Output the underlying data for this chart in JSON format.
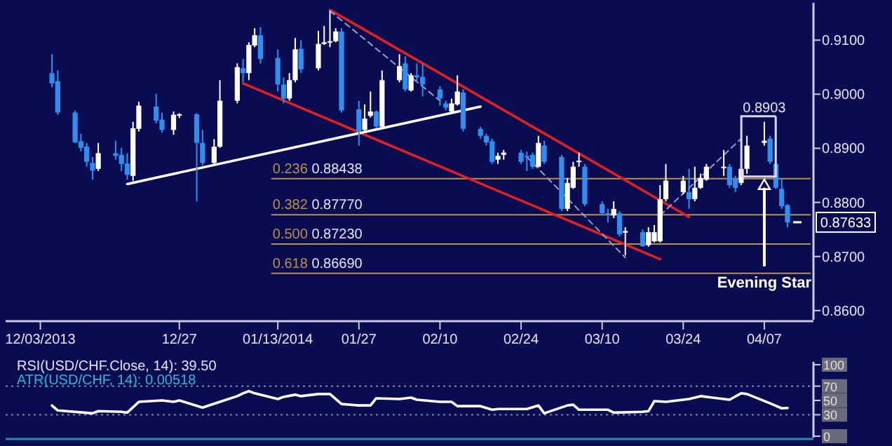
{
  "chart_data": [
    {
      "type": "candlestick",
      "xlim": [
        "2013-11-27",
        "2014-04-15"
      ],
      "ylim": [
        0.8583,
        0.9169
      ],
      "xticks": [
        {
          "value": "2013-12-03",
          "label": "12/03/2013"
        },
        {
          "value": "2013-12-27",
          "label": "12/27"
        },
        {
          "value": "2014-01-13",
          "label": "01/13/2014"
        },
        {
          "value": "2014-01-27",
          "label": "01/27"
        },
        {
          "value": "2014-02-10",
          "label": "02/10"
        },
        {
          "value": "2014-02-24",
          "label": "02/24"
        },
        {
          "value": "2014-03-10",
          "label": "03/10"
        },
        {
          "value": "2014-03-24",
          "label": "03/24"
        },
        {
          "value": "2014-04-07",
          "label": "04/07"
        }
      ],
      "yticks": [
        {
          "value": 0.86,
          "label": "0.8600"
        },
        {
          "value": 0.87,
          "label": "0.8700"
        },
        {
          "value": 0.88,
          "label": "0.8800"
        },
        {
          "value": 0.89,
          "label": "0.8900"
        },
        {
          "value": 0.9,
          "label": "0.9000"
        },
        {
          "value": 0.91,
          "label": "0.9100"
        }
      ],
      "x": [
        "2013-12-05",
        "2013-12-06",
        "2013-12-09",
        "2013-12-10",
        "2013-12-11",
        "2013-12-12",
        "2013-12-13",
        "2013-12-16",
        "2013-12-17",
        "2013-12-18",
        "2013-12-19",
        "2013-12-20",
        "2013-12-23",
        "2013-12-24",
        "2013-12-26",
        "2013-12-27",
        "2013-12-30",
        "2013-12-31",
        "2014-01-02",
        "2014-01-03",
        "2014-01-06",
        "2014-01-07",
        "2014-01-08",
        "2014-01-09",
        "2014-01-10",
        "2014-01-13",
        "2014-01-14",
        "2014-01-15",
        "2014-01-16",
        "2014-01-17",
        "2014-01-20",
        "2014-01-21",
        "2014-01-22",
        "2014-01-23",
        "2014-01-24",
        "2014-01-27",
        "2014-01-28",
        "2014-01-29",
        "2014-01-30",
        "2014-01-31",
        "2014-02-03",
        "2014-02-04",
        "2014-02-05",
        "2014-02-06",
        "2014-02-07",
        "2014-02-10",
        "2014-02-11",
        "2014-02-12",
        "2014-02-13",
        "2014-02-14",
        "2014-02-17",
        "2014-02-18",
        "2014-02-19",
        "2014-02-20",
        "2014-02-21",
        "2014-02-24",
        "2014-02-25",
        "2014-02-26",
        "2014-02-27",
        "2014-02-28",
        "2014-03-03",
        "2014-03-04",
        "2014-03-05",
        "2014-03-06",
        "2014-03-07",
        "2014-03-10",
        "2014-03-11",
        "2014-03-12",
        "2014-03-13",
        "2014-03-14",
        "2014-03-17",
        "2014-03-18",
        "2014-03-19",
        "2014-03-20",
        "2014-03-21",
        "2014-03-24",
        "2014-03-25",
        "2014-03-26",
        "2014-03-27",
        "2014-03-28",
        "2014-03-31",
        "2014-04-01",
        "2014-04-02",
        "2014-04-03",
        "2014-04-04",
        "2014-04-07",
        "2014-04-08",
        "2014-04-09",
        "2014-04-10",
        "2014-04-11"
      ],
      "ohlc": [
        [
          0.9039,
          0.9074,
          0.9013,
          0.902
        ],
        [
          0.9024,
          0.9044,
          0.8962,
          0.8966
        ],
        [
          0.8966,
          0.897,
          0.891,
          0.8911
        ],
        [
          0.8913,
          0.8927,
          0.8894,
          0.8901
        ],
        [
          0.8903,
          0.891,
          0.8866,
          0.8875
        ],
        [
          0.8873,
          0.8884,
          0.8842,
          0.8859
        ],
        [
          0.8862,
          0.891,
          0.8858,
          0.8891
        ],
        [
          0.8891,
          0.8914,
          0.8879,
          0.8886
        ],
        [
          0.8888,
          0.8901,
          0.8858,
          0.8871
        ],
        [
          0.8872,
          0.8891,
          0.8842,
          0.8851
        ],
        [
          0.8849,
          0.8949,
          0.884,
          0.8937
        ],
        [
          0.8936,
          0.8986,
          0.8931,
          0.8979
        ],
        [
          0.8977,
          0.9001,
          0.8946,
          0.8951
        ],
        [
          0.8953,
          0.8966,
          0.8929,
          0.8934
        ],
        [
          0.8934,
          0.8968,
          0.8925,
          0.8962
        ],
        [
          0.8962,
          0.8965,
          0.8956,
          0.8963
        ],
        [
          0.8963,
          0.8965,
          0.8802,
          0.891
        ],
        [
          0.891,
          0.8934,
          0.8868,
          0.8873
        ],
        [
          0.8873,
          0.8917,
          0.8871,
          0.8903
        ],
        [
          0.8903,
          0.9026,
          0.8901,
          0.8988
        ],
        [
          0.8988,
          0.9057,
          0.8983,
          0.905
        ],
        [
          0.9048,
          0.9065,
          0.9022,
          0.9039
        ],
        [
          0.9039,
          0.9096,
          0.9026,
          0.9091
        ],
        [
          0.909,
          0.9122,
          0.9087,
          0.9109
        ],
        [
          0.9109,
          0.9124,
          0.9057,
          0.9065
        ],
        [
          0.9067,
          0.9083,
          0.9005,
          0.9018
        ],
        [
          0.9018,
          0.9031,
          0.8983,
          0.8992
        ],
        [
          0.8992,
          0.9039,
          0.8988,
          0.9026
        ],
        [
          0.9026,
          0.9104,
          0.9022,
          0.9083
        ],
        [
          0.9084,
          0.91,
          0.9039,
          0.9046
        ],
        [
          0.9048,
          0.9117,
          0.9044,
          0.9093
        ],
        [
          0.9093,
          0.9126,
          0.9091,
          0.9096
        ],
        [
          0.9096,
          0.9154,
          0.9087,
          0.9098
        ],
        [
          0.9098,
          0.9122,
          0.9096,
          0.9116
        ],
        [
          0.9116,
          0.9122,
          0.8966,
          0.897
        ],
        [
          0.8972,
          0.8988,
          0.8905,
          0.8931
        ],
        [
          0.8934,
          0.8981,
          0.8929,
          0.8955
        ],
        [
          0.896,
          0.9005,
          0.8957,
          0.8968
        ],
        [
          0.8968,
          0.897,
          0.8937,
          0.894
        ],
        [
          0.894,
          0.9044,
          0.8937,
          0.9026
        ],
        [
          0.9026,
          0.9074,
          0.9022,
          0.9052
        ],
        [
          0.9057,
          0.907,
          0.9005,
          0.9009
        ],
        [
          0.9007,
          0.9039,
          0.9005,
          0.9035
        ],
        [
          0.9035,
          0.9057,
          0.9022,
          0.9031
        ],
        [
          0.9032,
          0.9057,
          0.8996,
          0.9018
        ],
        [
          0.9009,
          0.9015,
          0.8979,
          0.8992
        ],
        [
          0.8983,
          0.8988,
          0.897,
          0.8975
        ],
        [
          0.8968,
          0.8992,
          0.8966,
          0.8983
        ],
        [
          0.8981,
          0.9035,
          0.8979,
          0.9005
        ],
        [
          0.9003,
          0.9009,
          0.8931,
          0.8936
        ],
        [
          0.8936,
          0.894,
          0.8918,
          0.8923
        ],
        [
          0.8923,
          0.8927,
          0.8905,
          0.8911
        ],
        [
          0.8913,
          0.8918,
          0.8871,
          0.8875
        ],
        [
          0.8879,
          0.8892,
          0.8871,
          0.8886
        ],
        [
          0.8888,
          0.8897,
          0.8879,
          0.8892
        ],
        [
          0.8892,
          0.8897,
          0.8871,
          0.8875
        ],
        [
          0.8886,
          0.8894,
          0.8858,
          0.8884
        ],
        [
          0.8888,
          0.8892,
          0.8862,
          0.8866
        ],
        [
          0.8866,
          0.8923,
          0.8865,
          0.891
        ],
        [
          0.8905,
          0.8914,
          0.8871,
          0.8875
        ],
        [
          0.8884,
          0.8888,
          0.8784,
          0.8788
        ],
        [
          0.8788,
          0.8845,
          0.8784,
          0.8836
        ],
        [
          0.8827,
          0.8875,
          0.8825,
          0.8866
        ],
        [
          0.8875,
          0.8892,
          0.8866,
          0.8877
        ],
        [
          0.8866,
          0.8871,
          0.8793,
          0.8797
        ],
        [
          0.8797,
          0.8802,
          0.8776,
          0.878
        ],
        [
          0.878,
          0.8788,
          0.8763,
          0.8778
        ],
        [
          0.8776,
          0.8802,
          0.8771,
          0.8788
        ],
        [
          0.878,
          0.8784,
          0.8737,
          0.8741
        ],
        [
          0.8744,
          0.8754,
          0.8702,
          0.8747
        ],
        [
          0.8745,
          0.875,
          0.8718,
          0.8719
        ],
        [
          0.8721,
          0.8754,
          0.8718,
          0.8745
        ],
        [
          0.8728,
          0.8758,
          0.8726,
          0.8745
        ],
        [
          0.8728,
          0.8832,
          0.8726,
          0.8806
        ],
        [
          0.8806,
          0.8871,
          0.8802,
          0.884
        ],
        [
          0.8819,
          0.8849,
          0.8815,
          0.884
        ],
        [
          0.8819,
          0.8862,
          0.8788,
          0.8806
        ],
        [
          0.8806,
          0.8866,
          0.8802,
          0.8827
        ],
        [
          0.8827,
          0.8853,
          0.8825,
          0.8845
        ],
        [
          0.8842,
          0.8871,
          0.884,
          0.8866
        ],
        [
          0.8865,
          0.8897,
          0.8849,
          0.8866
        ],
        [
          0.8866,
          0.8871,
          0.8827,
          0.8832
        ],
        [
          0.8845,
          0.8849,
          0.8819,
          0.8827
        ],
        [
          0.8836,
          0.8875,
          0.8832,
          0.8862
        ],
        [
          0.8862,
          0.8923,
          0.8853,
          0.8905
        ],
        [
          0.891,
          0.8949,
          0.8905,
          0.8914
        ],
        [
          0.8918,
          0.8923,
          0.8871,
          0.8875
        ],
        [
          0.8871,
          0.8875,
          0.8825,
          0.8827
        ],
        [
          0.8825,
          0.8845,
          0.8788,
          0.8793
        ],
        [
          0.8795,
          0.8797,
          0.8754,
          0.8763
        ]
      ],
      "series": [
        {
          "type": "line",
          "x": [
            "2014-01-22",
            "2014-03-25"
          ],
          "values": [
            0.9156,
            0.8773
          ],
          "color": "#e0201f"
        },
        {
          "type": "line",
          "x": [
            "2014-01-07",
            "2014-03-20"
          ],
          "values": [
            0.902,
            0.8695
          ],
          "color": "#e0201f"
        },
        {
          "type": "line",
          "x": [
            "2013-12-18",
            "2014-02-17"
          ],
          "values": [
            0.8834,
            0.8977
          ],
          "color": "#ffffff"
        },
        {
          "type": "line",
          "x": [
            "2014-01-22",
            "2014-02-10"
          ],
          "values": [
            0.9154,
            0.8988
          ],
          "color": "#9aa0c8",
          "line_style": "dashed"
        },
        {
          "type": "line",
          "x": [
            "2014-02-25",
            "2014-03-14"
          ],
          "values": [
            0.8884,
            0.8698
          ],
          "color": "#9aa0c8",
          "line_style": "dashed"
        },
        {
          "type": "line",
          "x": [
            "2014-03-20",
            "2014-04-03"
          ],
          "values": [
            0.8776,
            0.8918
          ],
          "color": "#9aa0c8",
          "line_style": "dashed"
        }
      ],
      "ref_lines": [
        {
          "axis": "y",
          "value": 0.88438,
          "label": "0.236 0.88438",
          "color": "#b8914a"
        },
        {
          "axis": "y",
          "value": 0.8777,
          "label": "0.382 0.87770",
          "color": "#b8914a"
        },
        {
          "axis": "y",
          "value": 0.8723,
          "label": "0.500 0.87230",
          "color": "#b8914a"
        },
        {
          "axis": "y",
          "value": 0.8669,
          "label": "0.618 0.86690",
          "color": "#b8914a"
        }
      ],
      "annotations": [
        "Evening Star",
        {
          "text": "0.8903",
          "x": "2014-04-07",
          "y": 0.8949
        },
        {
          "text": "0.87633",
          "x": "2014-04-11",
          "y": 0.87633
        }
      ]
    },
    {
      "type": "line",
      "title": "RSI(USD/CHF.Close, 14): 39.50",
      "subtitle": "ATR(USD/CHF, 14): 0.00518",
      "xlim": [
        "2013-11-27",
        "2014-04-15"
      ],
      "ylim": [
        -2,
        104
      ],
      "yticks": [
        0,
        30,
        50,
        70,
        100
      ],
      "tick_labels": "y",
      "series": [
        {
          "x": [
            "2013-12-05",
            "2013-12-06",
            "2013-12-12",
            "2013-12-13",
            "2013-12-17",
            "2013-12-18",
            "2013-12-20",
            "2013-12-24",
            "2013-12-26",
            "2013-12-27",
            "2013-12-31",
            "2014-01-03",
            "2014-01-06",
            "2014-01-07",
            "2014-01-08",
            "2014-01-09",
            "2014-01-13",
            "2014-01-14",
            "2014-01-16",
            "2014-01-17",
            "2014-01-20",
            "2014-01-22",
            "2014-01-24",
            "2014-01-27",
            "2014-01-29",
            "2014-01-30",
            "2014-02-03",
            "2014-02-05",
            "2014-02-06",
            "2014-02-10",
            "2014-02-12",
            "2014-02-13",
            "2014-02-17",
            "2014-02-19",
            "2014-02-20",
            "2014-02-25",
            "2014-02-27",
            "2014-02-28",
            "2014-03-04",
            "2014-03-05",
            "2014-03-06",
            "2014-03-11",
            "2014-03-12",
            "2014-03-17",
            "2014-03-18",
            "2014-03-19",
            "2014-03-21",
            "2014-03-25",
            "2014-03-27",
            "2014-03-31",
            "2014-04-01",
            "2014-04-03",
            "2014-04-04",
            "2014-04-08",
            "2014-04-10",
            "2014-04-11"
          ],
          "values": [
            43,
            36,
            32,
            35,
            34,
            33,
            48,
            50,
            48,
            50,
            40,
            48,
            56,
            60,
            63,
            60,
            52,
            55,
            58,
            56,
            59,
            59,
            45,
            43,
            43,
            53,
            52,
            54,
            51,
            48,
            48,
            42,
            42,
            37,
            38,
            38,
            43,
            32,
            43,
            44,
            37,
            37,
            33,
            34,
            35,
            49,
            48,
            52,
            56,
            52,
            51,
            60,
            59,
            46,
            39,
            39.5
          ],
          "color": "#ffffff"
        }
      ],
      "ref_lines": [
        {
          "axis": "y",
          "value": 70,
          "color": "#8088b0",
          "line_style": "dotted"
        },
        {
          "axis": "y",
          "value": 30,
          "color": "#8088b0",
          "line_style": "dotted"
        }
      ]
    }
  ]
}
